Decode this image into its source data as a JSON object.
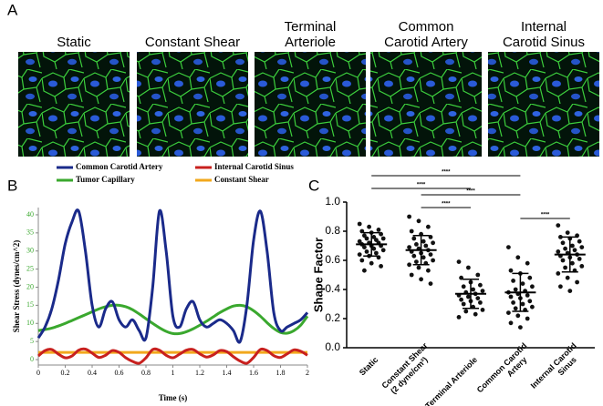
{
  "panel_labels": [
    "A",
    "B",
    "C"
  ],
  "images": [
    {
      "label": [
        "Static"
      ]
    },
    {
      "label": [
        "Constant Shear"
      ]
    },
    {
      "label": [
        "Terminal",
        "Arteriole"
      ]
    },
    {
      "label": [
        "Common",
        "Carotid Artery"
      ]
    },
    {
      "label": [
        "Internal",
        "Carotid Sinus"
      ]
    }
  ],
  "chart_data": [
    {
      "type": "line",
      "y_label": "Shear Stress (dynes/cm^2)",
      "x_label": "Time (s)",
      "x": [
        0,
        0.05,
        0.1,
        0.15,
        0.2,
        0.25,
        0.3,
        0.35,
        0.4,
        0.45,
        0.5,
        0.55,
        0.6,
        0.65,
        0.7,
        0.75,
        0.8,
        0.85,
        0.9,
        0.95,
        1,
        1.05,
        1.1,
        1.15,
        1.2,
        1.25,
        1.3,
        1.35,
        1.4,
        1.45,
        1.5,
        1.55,
        1.6,
        1.65,
        1.7,
        1.75,
        1.8,
        1.85,
        1.9,
        1.95,
        2
      ],
      "xlim": [
        0,
        2
      ],
      "xticks": [
        0,
        0.2,
        0.4,
        0.6,
        0.8,
        1,
        1.2,
        1.4,
        1.6,
        1.8,
        2
      ],
      "ylim": [
        -1.5,
        42
      ],
      "yticks": [
        0,
        5,
        10,
        15,
        20,
        25,
        30,
        35,
        40
      ],
      "series": [
        {
          "name": "Common Carotid Artery",
          "color": "#1a2a8a",
          "values": [
            6,
            9,
            14,
            22,
            32,
            38,
            41,
            30,
            15,
            9,
            14,
            16,
            11,
            9,
            11,
            8,
            6,
            20,
            41,
            30,
            12,
            9,
            14,
            16,
            11,
            9,
            10,
            11,
            10,
            8,
            5,
            15,
            33,
            41,
            30,
            13,
            8,
            9,
            10,
            11,
            13
          ]
        },
        {
          "name": "Internal Carotid Sinus",
          "color": "#c8201e",
          "values": [
            1,
            2.5,
            2.8,
            1.5,
            0.5,
            1,
            2.6,
            2.9,
            1.8,
            0.6,
            1.2,
            2.5,
            2,
            0.5,
            -0.5,
            -1,
            0.5,
            2.8,
            2.6,
            1.2,
            0.5,
            1.5,
            2.6,
            2.8,
            1.6,
            0.7,
            1.3,
            2.5,
            2.2,
            0.8,
            -0.4,
            -1,
            0.6,
            2.8,
            2.5,
            1.1,
            0.6,
            1.6,
            2.7,
            2.3,
            1.2
          ]
        },
        {
          "name": "Tumor Capillary",
          "color": "#3aa82e",
          "values": [
            8,
            8.3,
            8.7,
            9.3,
            10,
            10.8,
            11.6,
            12.4,
            13.2,
            14,
            14.6,
            15,
            15,
            14.6,
            13.8,
            12.6,
            11.3,
            10,
            8.8,
            7.8,
            7.2,
            7.2,
            7.7,
            8.5,
            9.5,
            10.6,
            11.8,
            13,
            14,
            14.8,
            15,
            14.6,
            13.5,
            12,
            10.2,
            8.6,
            7.5,
            7.3,
            8,
            9.5,
            12
          ]
        },
        {
          "name": "Constant Shear",
          "color": "#f2a81d",
          "values": [
            2,
            2,
            2,
            2,
            2,
            2,
            2,
            2,
            2,
            2,
            2,
            2,
            2,
            2,
            2,
            2,
            2,
            2,
            2,
            2,
            2,
            2,
            2,
            2,
            2,
            2,
            2,
            2,
            2,
            2,
            2,
            2,
            2,
            2,
            2,
            2,
            2,
            2,
            2,
            2,
            2
          ]
        }
      ]
    },
    {
      "type": "scatter",
      "y_label": "Shape Factor",
      "categories": [
        [
          "Static"
        ],
        [
          "Constant Shear",
          "(2 dyne/cm²)"
        ],
        [
          "Terminal Arteriole"
        ],
        [
          "Common Carotid",
          "Artery"
        ],
        [
          "Internal Carotid",
          "Sinus"
        ]
      ],
      "ylim": [
        0,
        1
      ],
      "yticks": [
        {
          "value": 0,
          "label": "0.0"
        },
        {
          "value": 0.2,
          "label": "0.2"
        },
        {
          "value": 0.4,
          "label": "0.4"
        },
        {
          "value": 0.6,
          "label": "0.6"
        },
        {
          "value": 0.8,
          "label": "0.8"
        },
        {
          "value": 1,
          "label": "1.0"
        }
      ],
      "color": "#111111",
      "groups": [
        [
          0.85,
          0.83,
          0.81,
          0.8,
          0.79,
          0.78,
          0.77,
          0.76,
          0.75,
          0.75,
          0.74,
          0.73,
          0.72,
          0.72,
          0.71,
          0.7,
          0.7,
          0.69,
          0.68,
          0.67,
          0.66,
          0.65,
          0.64,
          0.63,
          0.62,
          0.6,
          0.58,
          0.56,
          0.53
        ],
        [
          0.9,
          0.87,
          0.83,
          0.8,
          0.78,
          0.76,
          0.75,
          0.73,
          0.72,
          0.71,
          0.7,
          0.69,
          0.68,
          0.67,
          0.66,
          0.65,
          0.64,
          0.63,
          0.62,
          0.6,
          0.59,
          0.58,
          0.57,
          0.55,
          0.53,
          0.5,
          0.47,
          0.44
        ],
        [
          0.59,
          0.55,
          0.5,
          0.48,
          0.45,
          0.43,
          0.42,
          0.4,
          0.39,
          0.38,
          0.37,
          0.36,
          0.35,
          0.34,
          0.33,
          0.32,
          0.31,
          0.3,
          0.28,
          0.26,
          0.25,
          0.23,
          0.21
        ],
        [
          0.69,
          0.62,
          0.58,
          0.53,
          0.51,
          0.48,
          0.46,
          0.44,
          0.42,
          0.4,
          0.39,
          0.38,
          0.37,
          0.36,
          0.35,
          0.34,
          0.32,
          0.31,
          0.3,
          0.28,
          0.27,
          0.26,
          0.24,
          0.22,
          0.2,
          0.17,
          0.14
        ],
        [
          0.84,
          0.79,
          0.77,
          0.76,
          0.75,
          0.73,
          0.72,
          0.7,
          0.69,
          0.68,
          0.67,
          0.66,
          0.65,
          0.64,
          0.63,
          0.62,
          0.61,
          0.6,
          0.58,
          0.56,
          0.55,
          0.53,
          0.51,
          0.48,
          0.45,
          0.42,
          0.39
        ]
      ],
      "means": [
        0.71,
        0.67,
        0.37,
        0.38,
        0.64
      ],
      "sds": [
        0.08,
        0.1,
        0.1,
        0.13,
        0.12
      ],
      "comparisons": [
        {
          "groups": [
            0,
            3
          ],
          "label": "****"
        },
        {
          "groups": [
            0,
            2
          ],
          "label": "****"
        },
        {
          "groups": [
            1,
            3
          ],
          "label": "****"
        },
        {
          "groups": [
            1,
            2
          ],
          "label": "****"
        },
        {
          "groups": [
            3,
            4
          ],
          "label": "****"
        }
      ]
    }
  ]
}
